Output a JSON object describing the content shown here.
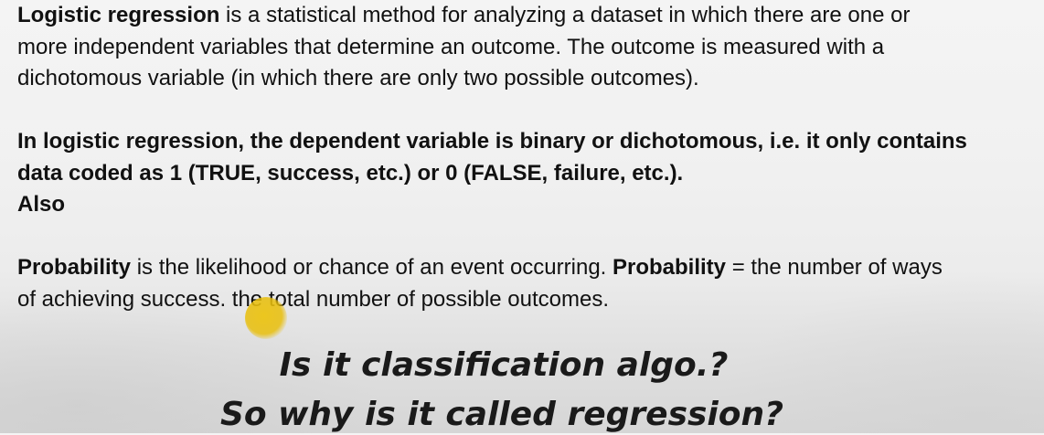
{
  "paragraph1": {
    "lead_bold": "Logistic regression",
    "line1_rest": " is a statistical method for analyzing a dataset in which there are one or",
    "line2": "more independent variables that determine an outcome. The outcome is measured with a",
    "line3": "dichotomous variable (in which there are only two possible outcomes)."
  },
  "paragraph2": {
    "line1": "In logistic regression, the dependent variable is binary or dichotomous, i.e. it only contains",
    "line2": "data coded as 1 (TRUE, success, etc.) or 0 (FALSE, failure, etc.).",
    "line3": "Also"
  },
  "paragraph3": {
    "bold1": "Probability",
    "text1": " is the likelihood or chance of an event occurring. ",
    "bold2": "Probability",
    "text2": " = the number of ways",
    "line2": "of achieving success. the total number of possible outcomes."
  },
  "questions": {
    "q1": "Is it classification algo.?",
    "q2": "So why is it called regression?"
  }
}
